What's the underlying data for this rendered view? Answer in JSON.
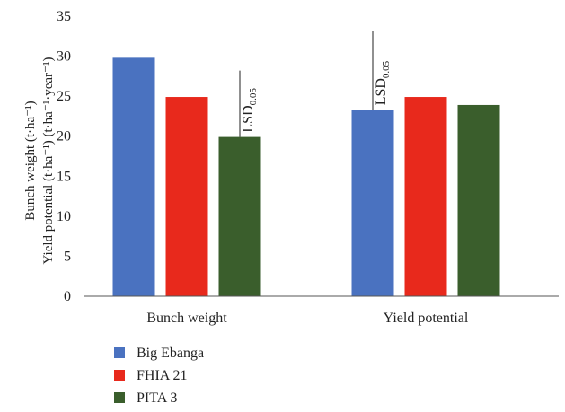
{
  "chart_data": {
    "type": "bar",
    "categories": [
      "Bunch weight",
      "Yield potential"
    ],
    "series": [
      {
        "name": "Big Ebanga",
        "values": [
          29.8,
          23.3
        ],
        "color": "#4a72c0"
      },
      {
        "name": "FHIA 21",
        "values": [
          24.9,
          24.9
        ],
        "color": "#e8291c"
      },
      {
        "name": "PITA 3",
        "values": [
          19.9,
          23.9
        ],
        "color": "#3a5e2c"
      }
    ],
    "ylim": [
      0,
      35
    ],
    "yticks": [
      0,
      5,
      10,
      15,
      20,
      25,
      30,
      35
    ],
    "ylabel_line1": "Bunch weight (t·ha⁻¹)",
    "ylabel_line2": "Yield potential (t·ha⁻¹) (t·ha⁻¹·year⁻¹)",
    "xlabel": "",
    "grid": false,
    "legend_position": "bottom-left",
    "lsd": [
      {
        "category": 0,
        "anchor_series": 2,
        "top": 28.2,
        "label": "LSD",
        "subscript": "0.05"
      },
      {
        "category": 1,
        "anchor_series": 0,
        "top": 33.2,
        "label": "LSD",
        "subscript": "0.05"
      }
    ]
  }
}
